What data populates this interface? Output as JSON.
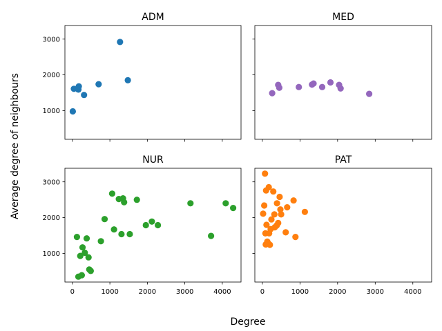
{
  "figure": {
    "xlabel": "Degree",
    "ylabel": "Average degree of neighbours"
  },
  "chart_data": {
    "type": "scatter",
    "shared_x": true,
    "shared_y": true,
    "xlim": [
      -200,
      4500
    ],
    "ylim": [
      200,
      3380
    ],
    "x_ticks": [
      0,
      1000,
      2000,
      3000,
      4000
    ],
    "y_ticks": [
      1000,
      2000,
      3000
    ],
    "x_tick_labels": [
      "0",
      "1000",
      "2000",
      "3000",
      "4000"
    ],
    "y_tick_labels": [
      "1000",
      "2000",
      "3000"
    ],
    "grid": false,
    "panels": [
      {
        "title": "ADM",
        "color": "#1f77b4",
        "points": [
          [
            10,
            980
          ],
          [
            40,
            1610
          ],
          [
            160,
            1590
          ],
          [
            170,
            1680
          ],
          [
            310,
            1440
          ],
          [
            700,
            1740
          ],
          [
            1270,
            2920
          ],
          [
            1480,
            1850
          ]
        ]
      },
      {
        "title": "MED",
        "color": "#9467bd",
        "points": [
          [
            260,
            1490
          ],
          [
            420,
            1720
          ],
          [
            450,
            1640
          ],
          [
            970,
            1660
          ],
          [
            1320,
            1730
          ],
          [
            1360,
            1760
          ],
          [
            1590,
            1660
          ],
          [
            1810,
            1790
          ],
          [
            2040,
            1720
          ],
          [
            2080,
            1620
          ],
          [
            2840,
            1470
          ]
        ]
      },
      {
        "title": "NUR",
        "color": "#2ca02c",
        "points": [
          [
            120,
            1460
          ],
          [
            160,
            350
          ],
          [
            210,
            930
          ],
          [
            250,
            390
          ],
          [
            270,
            1170
          ],
          [
            330,
            1020
          ],
          [
            380,
            1420
          ],
          [
            430,
            890
          ],
          [
            450,
            550
          ],
          [
            490,
            510
          ],
          [
            760,
            1340
          ],
          [
            860,
            1960
          ],
          [
            1060,
            2670
          ],
          [
            1110,
            1670
          ],
          [
            1240,
            2520
          ],
          [
            1310,
            1540
          ],
          [
            1350,
            2540
          ],
          [
            1380,
            2430
          ],
          [
            1530,
            1540
          ],
          [
            1720,
            2500
          ],
          [
            1960,
            1790
          ],
          [
            2120,
            1890
          ],
          [
            2280,
            1790
          ],
          [
            3150,
            2400
          ],
          [
            3700,
            1490
          ],
          [
            4090,
            2400
          ],
          [
            4290,
            2270
          ]
        ]
      },
      {
        "title": "PAT",
        "color": "#ff7f0e",
        "points": [
          [
            20,
            2110
          ],
          [
            50,
            2340
          ],
          [
            70,
            3230
          ],
          [
            80,
            1560
          ],
          [
            90,
            1250
          ],
          [
            100,
            2760
          ],
          [
            110,
            1800
          ],
          [
            130,
            1330
          ],
          [
            150,
            1290
          ],
          [
            170,
            2850
          ],
          [
            180,
            1560
          ],
          [
            200,
            1240
          ],
          [
            220,
            1680
          ],
          [
            240,
            1950
          ],
          [
            290,
            2730
          ],
          [
            320,
            2090
          ],
          [
            330,
            1730
          ],
          [
            380,
            1780
          ],
          [
            390,
            2400
          ],
          [
            420,
            1850
          ],
          [
            460,
            2580
          ],
          [
            480,
            2230
          ],
          [
            500,
            2090
          ],
          [
            620,
            1590
          ],
          [
            660,
            2290
          ],
          [
            830,
            2480
          ],
          [
            880,
            1460
          ],
          [
            1130,
            2160
          ]
        ]
      }
    ]
  }
}
